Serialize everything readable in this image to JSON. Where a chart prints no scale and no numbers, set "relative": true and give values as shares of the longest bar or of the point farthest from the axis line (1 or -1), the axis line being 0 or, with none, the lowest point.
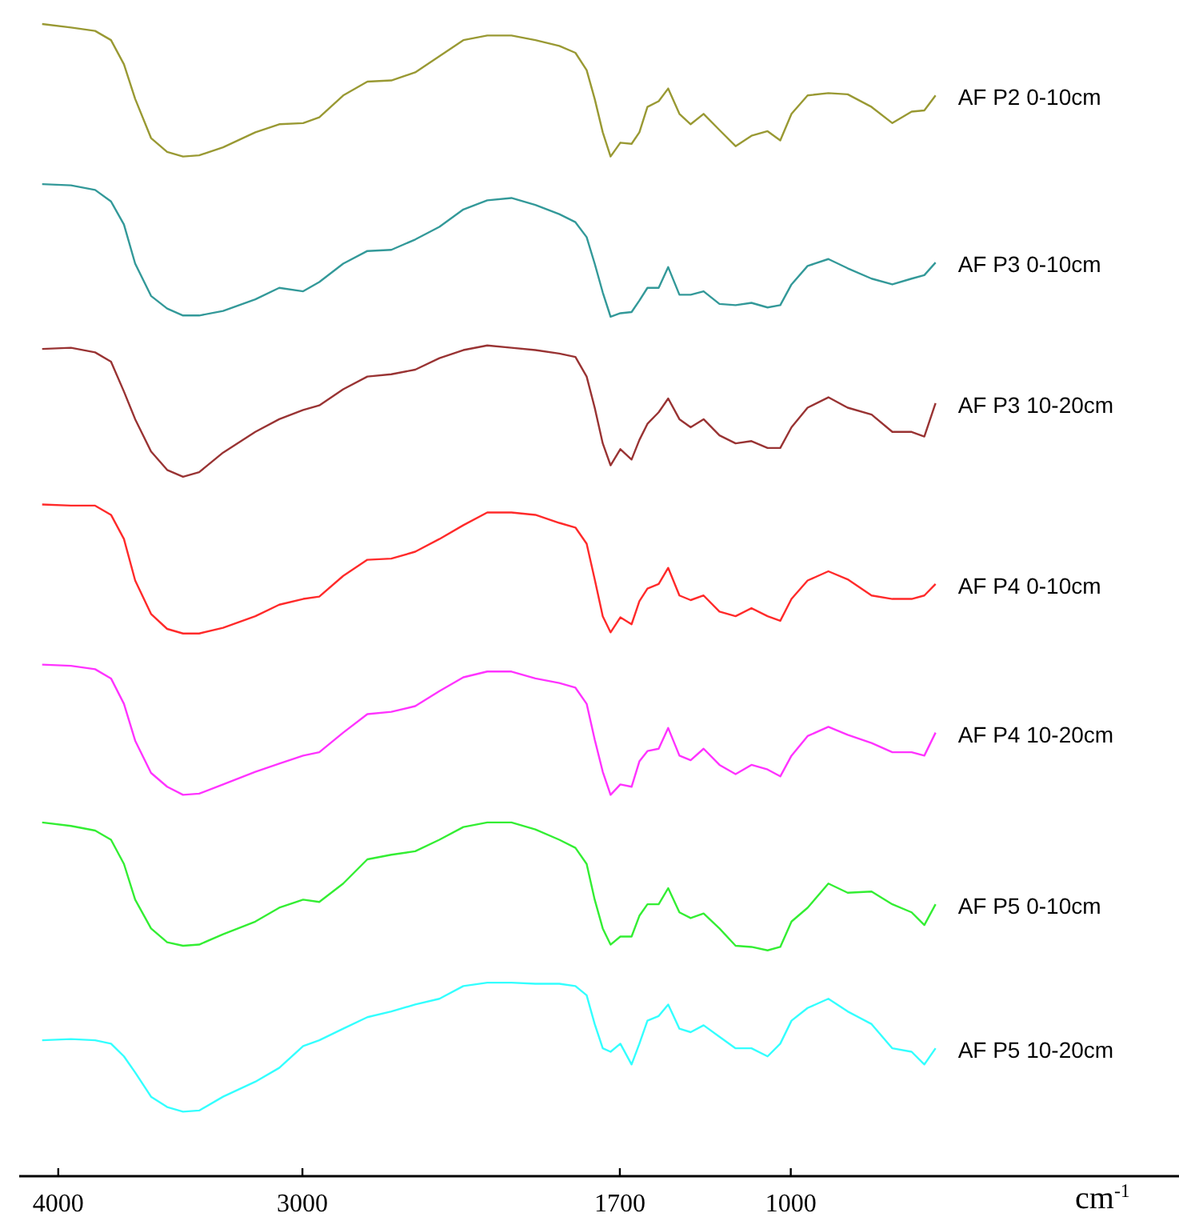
{
  "chart_data": {
    "type": "line",
    "relative": true,
    "xlabel": "cm$^{-1}$",
    "xlim": [
      4160,
      -590
    ],
    "xticks": [
      4000,
      3000,
      1700,
      1000
    ],
    "grid": false,
    "legend": false,
    "marker": "none",
    "line_style": "solid",
    "x": [
      4066,
      3948,
      3849,
      3784,
      3731,
      3685,
      3620,
      3554,
      3489,
      3423,
      3325,
      3193,
      3095,
      2997,
      2931,
      2833,
      2734,
      2636,
      2538,
      2439,
      2341,
      2243,
      2144,
      2046,
      1948,
      1882,
      1836,
      1803,
      1770,
      1738,
      1698,
      1652,
      1620,
      1587,
      1541,
      1502,
      1456,
      1410,
      1357,
      1292,
      1226,
      1161,
      1095,
      1043,
      997,
      931,
      846,
      767,
      669,
      584,
      505,
      453,
      407
    ],
    "series": [
      {
        "name": "AF P2 0-10cm",
        "color": "#999933",
        "values": [
          1,
          0.997,
          0.994,
          0.986,
          0.965,
          0.935,
          0.901,
          0.889,
          0.885,
          0.886,
          0.893,
          0.906,
          0.913,
          0.914,
          0.919,
          0.938,
          0.95,
          0.951,
          0.958,
          0.972,
          0.986,
          0.99,
          0.99,
          0.986,
          0.981,
          0.975,
          0.96,
          0.935,
          0.906,
          0.885,
          0.897,
          0.896,
          0.906,
          0.928,
          0.933,
          0.944,
          0.922,
          0.913,
          0.922,
          0.908,
          0.894,
          0.903,
          0.907,
          0.899,
          0.922,
          0.938,
          0.94,
          0.939,
          0.928,
          0.914,
          0.924,
          0.925,
          0.938
        ]
      },
      {
        "name": "AF P3 0-10cm",
        "color": "#339999",
        "values": [
          0.861,
          0.86,
          0.856,
          0.846,
          0.826,
          0.792,
          0.764,
          0.753,
          0.747,
          0.747,
          0.751,
          0.761,
          0.771,
          0.768,
          0.776,
          0.792,
          0.803,
          0.804,
          0.813,
          0.824,
          0.839,
          0.847,
          0.849,
          0.843,
          0.835,
          0.828,
          0.815,
          0.792,
          0.767,
          0.746,
          0.749,
          0.75,
          0.76,
          0.771,
          0.771,
          0.789,
          0.765,
          0.765,
          0.768,
          0.757,
          0.756,
          0.758,
          0.754,
          0.756,
          0.774,
          0.79,
          0.796,
          0.788,
          0.779,
          0.774,
          0.779,
          0.782,
          0.793
        ]
      },
      {
        "name": "AF P3 10-20cm",
        "color": "#993333",
        "values": [
          0.718,
          0.719,
          0.715,
          0.707,
          0.681,
          0.657,
          0.629,
          0.613,
          0.607,
          0.611,
          0.628,
          0.646,
          0.657,
          0.665,
          0.669,
          0.683,
          0.694,
          0.696,
          0.7,
          0.71,
          0.717,
          0.721,
          0.719,
          0.717,
          0.714,
          0.711,
          0.694,
          0.667,
          0.636,
          0.617,
          0.631,
          0.622,
          0.639,
          0.653,
          0.663,
          0.675,
          0.657,
          0.65,
          0.657,
          0.643,
          0.636,
          0.638,
          0.632,
          0.632,
          0.65,
          0.667,
          0.676,
          0.667,
          0.661,
          0.646,
          0.646,
          0.642,
          0.671
        ]
      },
      {
        "name": "AF P4 0-10cm",
        "color": "#ff2a2a",
        "values": [
          0.583,
          0.582,
          0.582,
          0.574,
          0.553,
          0.517,
          0.488,
          0.475,
          0.471,
          0.471,
          0.476,
          0.486,
          0.496,
          0.501,
          0.503,
          0.521,
          0.535,
          0.536,
          0.542,
          0.553,
          0.565,
          0.576,
          0.576,
          0.574,
          0.567,
          0.563,
          0.549,
          0.518,
          0.486,
          0.472,
          0.485,
          0.479,
          0.499,
          0.51,
          0.514,
          0.528,
          0.504,
          0.5,
          0.504,
          0.49,
          0.486,
          0.493,
          0.486,
          0.482,
          0.501,
          0.517,
          0.525,
          0.518,
          0.504,
          0.501,
          0.501,
          0.504,
          0.514
        ]
      },
      {
        "name": "AF P4 10-20cm",
        "color": "#ff33ff",
        "values": [
          0.444,
          0.443,
          0.44,
          0.432,
          0.41,
          0.378,
          0.35,
          0.338,
          0.331,
          0.332,
          0.34,
          0.351,
          0.358,
          0.365,
          0.368,
          0.385,
          0.401,
          0.403,
          0.408,
          0.421,
          0.433,
          0.438,
          0.438,
          0.432,
          0.428,
          0.424,
          0.41,
          0.379,
          0.351,
          0.331,
          0.34,
          0.338,
          0.36,
          0.369,
          0.371,
          0.389,
          0.365,
          0.361,
          0.371,
          0.357,
          0.349,
          0.357,
          0.353,
          0.347,
          0.365,
          0.382,
          0.39,
          0.383,
          0.376,
          0.368,
          0.368,
          0.365,
          0.385
        ]
      },
      {
        "name": "AF P5 0-10cm",
        "color": "#33ee33",
        "values": [
          0.307,
          0.304,
          0.3,
          0.292,
          0.271,
          0.24,
          0.215,
          0.203,
          0.2,
          0.201,
          0.21,
          0.221,
          0.233,
          0.24,
          0.238,
          0.254,
          0.275,
          0.279,
          0.282,
          0.292,
          0.303,
          0.307,
          0.307,
          0.301,
          0.292,
          0.285,
          0.271,
          0.24,
          0.215,
          0.201,
          0.208,
          0.208,
          0.226,
          0.236,
          0.236,
          0.25,
          0.229,
          0.224,
          0.228,
          0.215,
          0.2,
          0.199,
          0.196,
          0.199,
          0.221,
          0.233,
          0.254,
          0.246,
          0.247,
          0.236,
          0.229,
          0.218,
          0.236
        ]
      },
      {
        "name": "AF P5 10-20cm",
        "color": "#33ffff",
        "values": [
          0.118,
          0.119,
          0.118,
          0.115,
          0.104,
          0.09,
          0.069,
          0.06,
          0.056,
          0.057,
          0.069,
          0.082,
          0.094,
          0.113,
          0.118,
          0.128,
          0.138,
          0.143,
          0.149,
          0.154,
          0.165,
          0.168,
          0.168,
          0.167,
          0.167,
          0.165,
          0.157,
          0.132,
          0.111,
          0.108,
          0.115,
          0.097,
          0.115,
          0.135,
          0.139,
          0.149,
          0.128,
          0.125,
          0.131,
          0.121,
          0.111,
          0.111,
          0.104,
          0.115,
          0.135,
          0.146,
          0.154,
          0.143,
          0.132,
          0.111,
          0.108,
          0.097,
          0.111
        ]
      }
    ]
  }
}
